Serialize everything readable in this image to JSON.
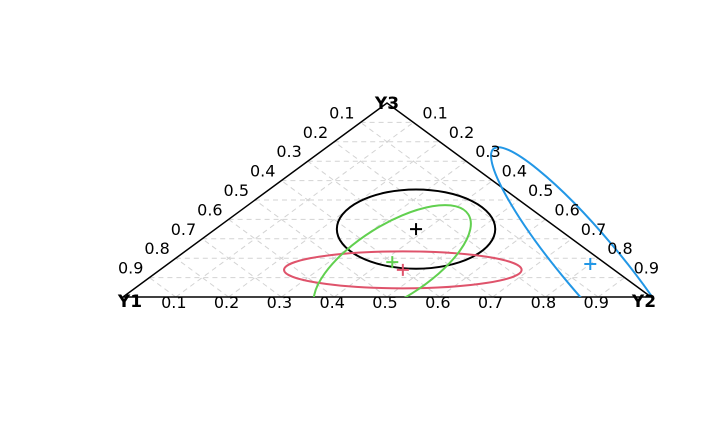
{
  "chart_data": {
    "type": "ternary",
    "vertices": [
      "Y1",
      "Y2",
      "Y3"
    ],
    "tick_values": [
      0.1,
      0.2,
      0.3,
      0.4,
      0.5,
      0.6,
      0.7,
      0.8,
      0.9
    ],
    "bottom_tick_labels": [
      "0.1",
      "0.2",
      "0.3",
      "0.4",
      "0.5",
      "0.6",
      "0.7",
      "0.8",
      "0.9"
    ],
    "left_tick_labels": [
      "0.9",
      "0.8",
      "0.7",
      "0.6",
      "0.5",
      "0.4",
      "0.3",
      "0.2",
      "0.1"
    ],
    "right_tick_labels": [
      "0.1",
      "0.2",
      "0.3",
      "0.4",
      "0.5",
      "0.6",
      "0.7",
      "0.8",
      "0.9"
    ],
    "grid": true,
    "axis_color": "#000000",
    "grid_color": "#d3d3d3",
    "series": [
      {
        "color": "#000000",
        "center": {
          "y1": 0.27,
          "y2": 0.38,
          "y3": 0.35
        },
        "radii": [
          0.3,
          0.15
        ],
        "angle_deg": 0
      },
      {
        "color": "#DF536B",
        "center": {
          "y1": 0.4,
          "y2": 0.46,
          "y3": 0.14
        },
        "radii": [
          0.45,
          0.07
        ],
        "angle_deg": 0
      },
      {
        "color": "#61D04F",
        "center": {
          "y1": 0.4,
          "y2": 0.42,
          "y3": 0.18
        },
        "radii": [
          0.34,
          0.14
        ],
        "angle_deg": -32
      },
      {
        "color": "#2297E6",
        "center": {
          "y1": 0.03,
          "y2": 0.8,
          "y3": 0.17
        },
        "radii": [
          0.57,
          0.11
        ],
        "angle_deg": 50
      }
    ]
  }
}
